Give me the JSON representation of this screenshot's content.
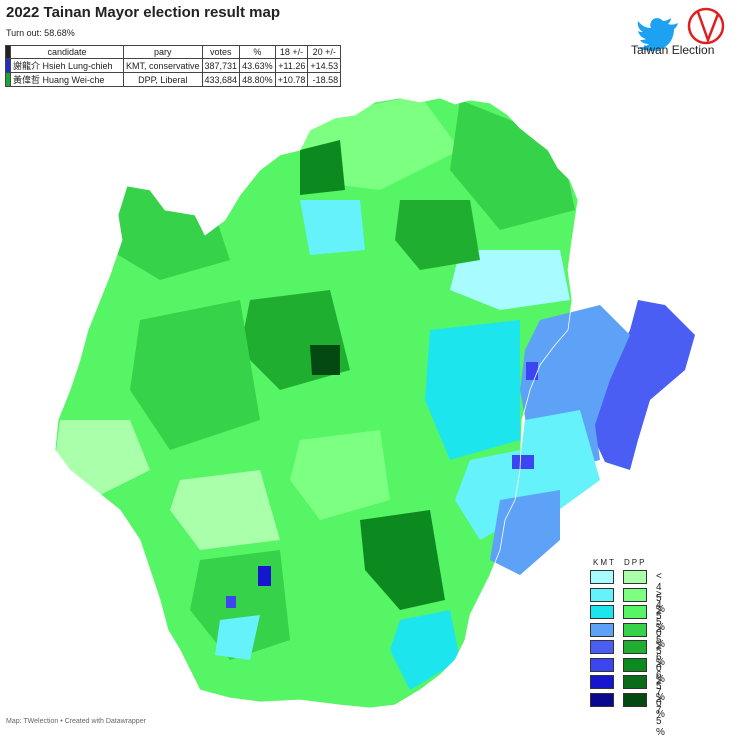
{
  "title": "2022 Tainan Mayor election result map",
  "turnout": "Turn out: 58.68%",
  "table": {
    "headers": [
      "candidate",
      "pary",
      "votes",
      "%",
      "18 +/-",
      "20 +/-"
    ],
    "rows": [
      {
        "candidate": "謝龍介 Hsieh Lung-chieh",
        "party": "KMT, conservative",
        "votes": "387,731",
        "pct": "43.63%",
        "d18": "+11.26",
        "d20": "+14.53",
        "color": "#1f2fbf"
      },
      {
        "candidate": "黃偉哲 Huang Wei-che",
        "party": "DPP, Liberal",
        "votes": "433,684",
        "pct": "48.80%",
        "d18": "+10.78",
        "d20": "-18.58",
        "color": "#1aa53a"
      }
    ]
  },
  "brand": {
    "label": "Taiwan Election",
    "twitter_icon": "bird-icon",
    "vote_icon": "ballot-check-icon",
    "accent": "#e02020",
    "twitter_color": "#1da1f2"
  },
  "legend": {
    "kmt_header": "KMT",
    "dpp_header": "DPP",
    "rows": [
      {
        "label": "< 4 5 %",
        "kmt": "#a8fbff",
        "dpp": "#aaffaa"
      },
      {
        "label": "≥ 4 5 %",
        "kmt": "#66f2fa",
        "dpp": "#7dff82"
      },
      {
        "label": "≥ 5 0 %",
        "kmt": "#1de5ee",
        "dpp": "#55f565"
      },
      {
        "label": "≥ 5 5 %",
        "kmt": "#5ea2f7",
        "dpp": "#35d24a"
      },
      {
        "label": "≥ 6 0 %",
        "kmt": "#4a5ef4",
        "dpp": "#1fae2f"
      },
      {
        "label": "≥ 6 5 %",
        "kmt": "#3b45f0",
        "dpp": "#0c8a20"
      },
      {
        "label": "≥ 7 0 %",
        "kmt": "#1616d0",
        "dpp": "#0a6b18"
      },
      {
        "label": "≥ 7 5 %",
        "kmt": "#0a0a90",
        "dpp": "#044812"
      }
    ]
  },
  "footer": "Map: TWelection • Created with Datawrapper"
}
